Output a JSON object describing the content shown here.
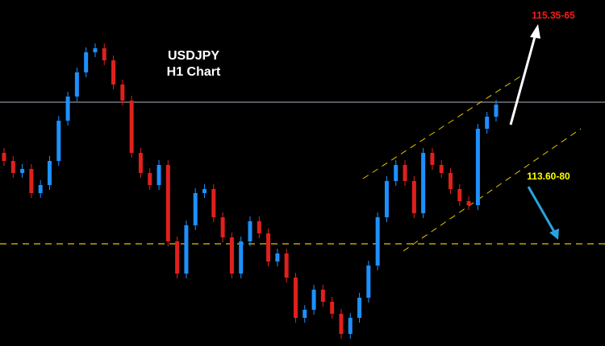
{
  "chart_data": {
    "type": "candlestick",
    "title": "USDJPY",
    "subtitle": "H1 Chart",
    "ylim": [
      113.065,
      115.215
    ],
    "up_color": "#1e90ff",
    "down_color": "#e0201c",
    "background": "#000000",
    "open": [
      114.265,
      114.215,
      114.14,
      114.165,
      114.015,
      114.065,
      114.215,
      114.465,
      114.615,
      114.765,
      114.89,
      114.915,
      114.84,
      114.69,
      114.59,
      114.265,
      114.14,
      114.065,
      114.19,
      113.715,
      113.515,
      113.815,
      114.015,
      114.04,
      113.865,
      113.74,
      113.515,
      113.715,
      113.84,
      113.765,
      113.59,
      113.64,
      113.49,
      113.24,
      113.29,
      113.415,
      113.34,
      113.265,
      113.14,
      113.24,
      113.365,
      113.565,
      113.865,
      114.09,
      114.19,
      114.09,
      113.89,
      114.265,
      114.19,
      114.14,
      114.04,
      113.965,
      113.94,
      114.415,
      114.49
    ],
    "high": [
      114.295,
      114.245,
      114.195,
      114.195,
      114.095,
      114.245,
      114.495,
      114.645,
      114.795,
      114.92,
      114.945,
      114.945,
      114.87,
      114.72,
      114.62,
      114.295,
      114.17,
      114.22,
      114.22,
      113.745,
      113.845,
      114.045,
      114.07,
      114.07,
      113.895,
      113.77,
      113.745,
      113.87,
      113.87,
      113.795,
      113.67,
      113.67,
      113.52,
      113.32,
      113.445,
      113.445,
      113.37,
      113.295,
      113.27,
      113.395,
      113.595,
      113.895,
      114.12,
      114.22,
      114.22,
      114.12,
      114.295,
      114.295,
      114.22,
      114.17,
      114.07,
      113.995,
      114.445,
      114.52,
      114.595
    ],
    "low": [
      114.185,
      114.11,
      114.11,
      113.985,
      113.985,
      114.035,
      114.185,
      114.435,
      114.585,
      114.735,
      114.86,
      114.81,
      114.66,
      114.56,
      114.235,
      114.11,
      114.035,
      114.035,
      113.685,
      113.485,
      113.485,
      113.785,
      113.985,
      113.835,
      113.71,
      113.485,
      113.485,
      113.685,
      113.735,
      113.56,
      113.56,
      113.46,
      113.21,
      113.21,
      113.26,
      113.31,
      113.235,
      113.11,
      113.11,
      113.21,
      113.335,
      113.535,
      113.835,
      114.06,
      114.06,
      113.86,
      113.86,
      114.16,
      114.11,
      114.01,
      113.935,
      113.91,
      113.91,
      114.385,
      114.46
    ],
    "close": [
      114.215,
      114.14,
      114.165,
      114.015,
      114.065,
      114.215,
      114.465,
      114.615,
      114.765,
      114.89,
      114.915,
      114.84,
      114.69,
      114.59,
      114.265,
      114.14,
      114.065,
      114.19,
      113.715,
      113.515,
      113.815,
      114.015,
      114.04,
      113.865,
      113.74,
      113.515,
      113.715,
      113.84,
      113.765,
      113.59,
      113.64,
      113.49,
      113.24,
      113.29,
      113.415,
      113.34,
      113.265,
      113.14,
      113.24,
      113.365,
      113.565,
      113.865,
      114.09,
      114.19,
      114.09,
      113.89,
      114.265,
      114.19,
      114.14,
      114.04,
      113.965,
      113.94,
      114.415,
      114.49,
      114.565
    ],
    "levels": [
      {
        "value": 114.58,
        "color": "#8a8f99",
        "style": "solid"
      },
      {
        "value": 113.7,
        "color": "#e6c200",
        "style": "dashed"
      }
    ],
    "annotations": [
      {
        "text": "115.35-65",
        "color": "#ff1a1a"
      },
      {
        "text": "113.60-80",
        "color": "#ffff00"
      }
    ]
  }
}
